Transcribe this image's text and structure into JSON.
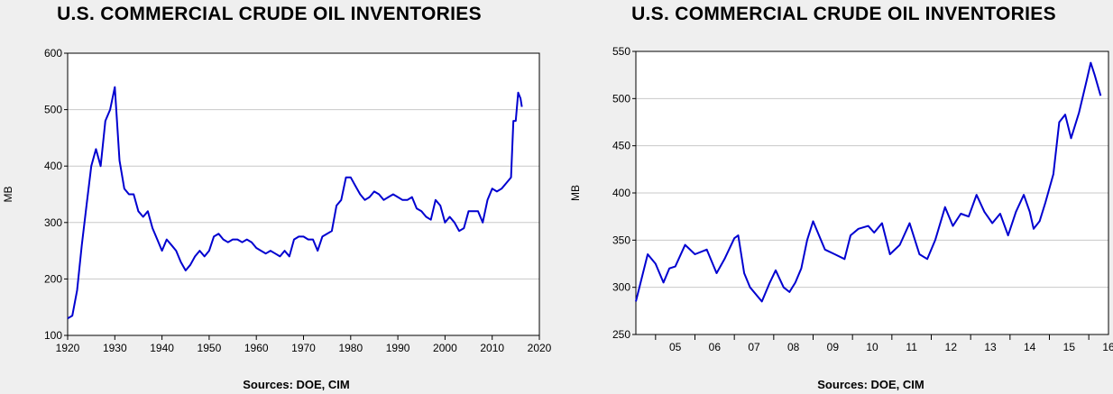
{
  "chart_data": [
    {
      "type": "line",
      "title": "U.S. COMMERCIAL CRUDE OIL INVENTORIES",
      "ylabel": "MB",
      "xlabel": "",
      "source": "Sources:  DOE, CIM",
      "xlim": [
        1920,
        2020
      ],
      "ylim": [
        100,
        600
      ],
      "xticks": [
        "1920",
        "1930",
        "1940",
        "1950",
        "1960",
        "1970",
        "1980",
        "1990",
        "2000",
        "2010",
        "2020"
      ],
      "yticks": [
        "100",
        "200",
        "300",
        "400",
        "500",
        "600"
      ],
      "grid": true,
      "line_color": "#0000d0",
      "series": [
        {
          "x": [
            1920,
            1921,
            1922,
            1923,
            1924,
            1925,
            1926,
            1927,
            1928,
            1929,
            1930,
            1931,
            1932,
            1933,
            1934,
            1935,
            1936,
            1937,
            1938,
            1939,
            1940,
            1941,
            1942,
            1943,
            1944,
            1945,
            1946,
            1947,
            1948,
            1949,
            1950,
            1951,
            1952,
            1953,
            1954,
            1955,
            1956,
            1957,
            1958,
            1959,
            1960,
            1961,
            1962,
            1963,
            1964,
            1965,
            1966,
            1967,
            1968,
            1969,
            1970,
            1971,
            1972,
            1973,
            1974,
            1975,
            1976,
            1977,
            1978,
            1979,
            1980,
            1981,
            1982,
            1983,
            1984,
            1985,
            1986,
            1987,
            1988,
            1989,
            1990,
            1991,
            1992,
            1993,
            1994,
            1995,
            1996,
            1997,
            1998,
            1999,
            2000,
            2001,
            2002,
            2003,
            2004,
            2005,
            2006,
            2007,
            2008,
            2009,
            2010,
            2011,
            2012,
            2013,
            2014,
            2014.5,
            2015,
            2015.5,
            2016,
            2016.3
          ],
          "y": [
            130,
            135,
            180,
            260,
            330,
            400,
            430,
            400,
            480,
            500,
            540,
            410,
            360,
            350,
            350,
            320,
            310,
            320,
            290,
            270,
            250,
            270,
            260,
            250,
            230,
            215,
            225,
            240,
            250,
            240,
            250,
            275,
            280,
            270,
            265,
            270,
            270,
            265,
            270,
            265,
            255,
            250,
            245,
            250,
            245,
            240,
            250,
            240,
            270,
            275,
            275,
            270,
            270,
            250,
            275,
            280,
            285,
            330,
            340,
            380,
            380,
            365,
            350,
            340,
            345,
            355,
            350,
            340,
            345,
            350,
            345,
            340,
            340,
            345,
            325,
            320,
            310,
            305,
            340,
            330,
            300,
            310,
            300,
            285,
            290,
            320,
            320,
            320,
            300,
            340,
            360,
            355,
            360,
            370,
            380,
            480,
            480,
            530,
            520,
            505
          ]
        }
      ]
    },
    {
      "type": "line",
      "title": "U.S. COMMERCIAL CRUDE OIL INVENTORIES",
      "ylabel": "MB",
      "xlabel": "",
      "source": "Sources:  DOE, CIM",
      "xlim": [
        2004.5,
        2016.5
      ],
      "ylim": [
        250,
        550
      ],
      "xticks": [
        "05",
        "06",
        "07",
        "08",
        "09",
        "10",
        "11",
        "12",
        "13",
        "14",
        "15",
        "16"
      ],
      "yticks": [
        "250",
        "300",
        "350",
        "400",
        "450",
        "500",
        "550"
      ],
      "grid": true,
      "line_color": "#0000d0",
      "series": [
        {
          "x": [
            2004.5,
            2004.8,
            2005.0,
            2005.2,
            2005.35,
            2005.5,
            2005.75,
            2006.0,
            2006.3,
            2006.55,
            2006.75,
            2007.0,
            2007.1,
            2007.25,
            2007.4,
            2007.7,
            2007.9,
            2008.05,
            2008.25,
            2008.4,
            2008.55,
            2008.7,
            2008.85,
            2009.0,
            2009.3,
            2009.55,
            2009.8,
            2009.95,
            2010.15,
            2010.4,
            2010.55,
            2010.75,
            2010.95,
            2011.2,
            2011.45,
            2011.7,
            2011.9,
            2012.1,
            2012.35,
            2012.55,
            2012.75,
            2012.95,
            2013.15,
            2013.35,
            2013.55,
            2013.75,
            2013.95,
            2014.15,
            2014.35,
            2014.5,
            2014.6,
            2014.75,
            2014.9,
            2015.1,
            2015.25,
            2015.4,
            2015.55,
            2015.75,
            2015.95,
            2016.05,
            2016.15,
            2016.3
          ],
          "y": [
            285,
            335,
            325,
            305,
            320,
            322,
            345,
            335,
            340,
            315,
            330,
            352,
            355,
            315,
            300,
            285,
            305,
            318,
            300,
            295,
            305,
            320,
            350,
            370,
            340,
            335,
            330,
            355,
            362,
            365,
            358,
            368,
            335,
            345,
            368,
            335,
            330,
            350,
            385,
            365,
            378,
            375,
            398,
            380,
            368,
            378,
            355,
            380,
            398,
            380,
            362,
            370,
            390,
            420,
            475,
            483,
            458,
            485,
            520,
            538,
            525,
            503
          ]
        }
      ]
    }
  ]
}
